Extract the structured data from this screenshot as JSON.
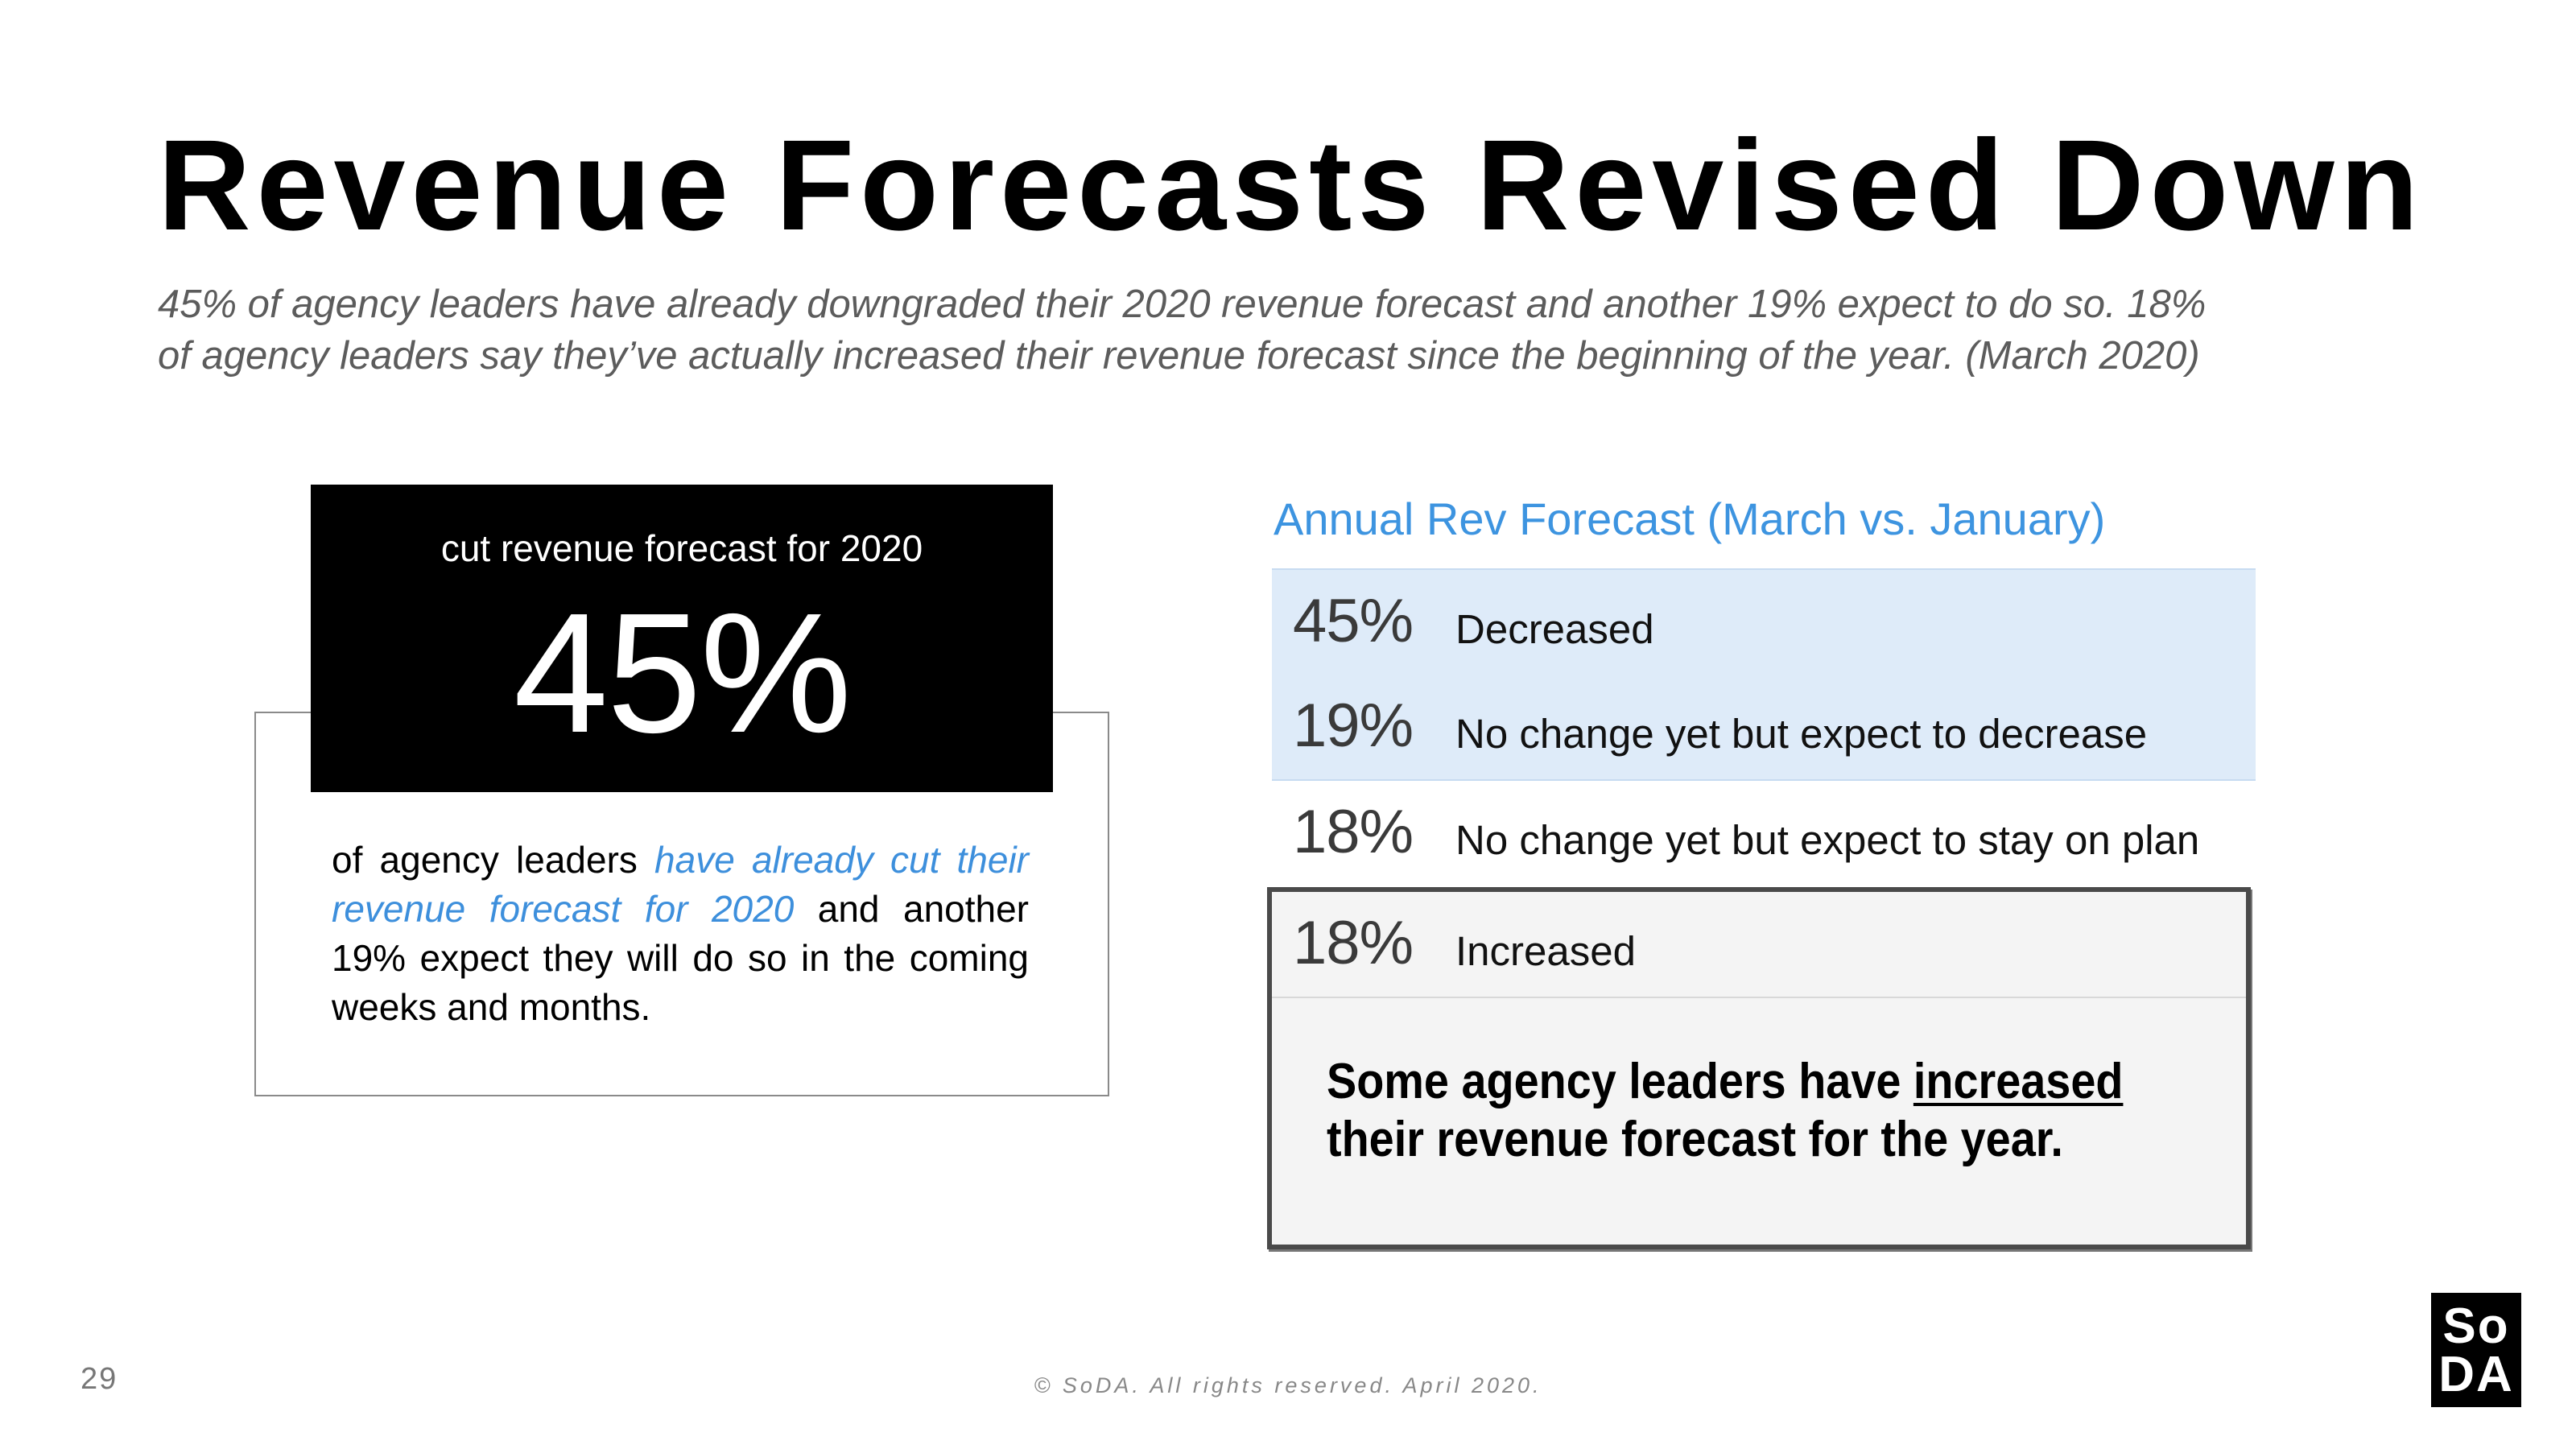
{
  "header": {
    "title": "Revenue Forecasts Revised Down",
    "subtitle_line1": "45% of agency leaders have already downgraded their 2020 revenue forecast and another 19% expect to do so. 18%",
    "subtitle_line2": "of agency leaders say they’ve actually increased their revenue forecast since the beginning of the year.  (March 2020)"
  },
  "stat_card": {
    "label": "cut revenue forecast for 2020",
    "value": "45%",
    "text_before": "of agency leaders ",
    "text_highlight": "have already cut their revenue forecast for 2020",
    "text_after": " and another 19% expect they will do so in the coming weeks and months."
  },
  "forecast_table": {
    "title": "Annual Rev Forecast (March vs. January)",
    "rows": [
      {
        "pct": "45%",
        "label": "Decreased"
      },
      {
        "pct": "19%",
        "label": "No change yet but expect to decrease"
      },
      {
        "pct": "18%",
        "label": "No change yet but expect to stay on plan"
      },
      {
        "pct": "18%",
        "label": "Increased"
      }
    ]
  },
  "callout": {
    "text_before": "Some agency leaders have ",
    "text_underlined": "increased",
    "text_after": " their revenue forecast for the year."
  },
  "footer": {
    "page_number": "29",
    "copyright": "© SoDA. All rights reserved. April 2020."
  },
  "logo": {
    "line1": "So",
    "line2": "DA"
  },
  "colors": {
    "accent_blue": "#3d94e0",
    "row_highlight": "#deebf9"
  }
}
